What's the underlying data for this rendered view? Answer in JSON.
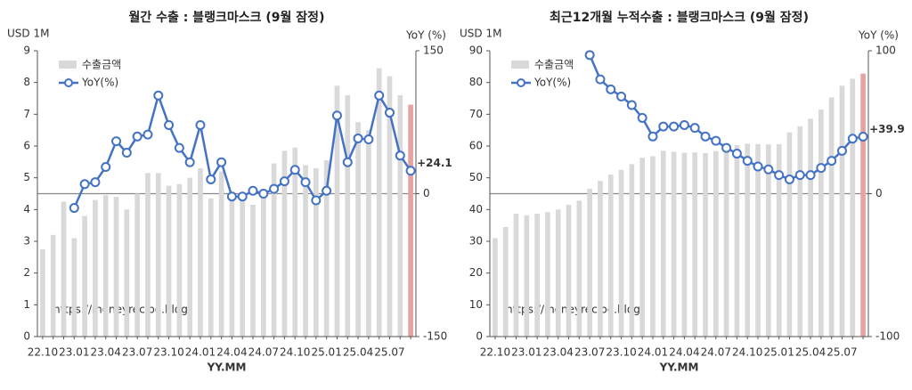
{
  "chart_data": [
    {
      "type": "bar-line",
      "title": "월간 수출 : 블랭크마스크 (9월 잠정)",
      "y_label": "USD 1M",
      "y2_label": "YoY (%)",
      "x_label": "YY.MM",
      "watermark": "https://moneyrecipe.blog",
      "categories": [
        "22.10",
        null,
        null,
        "23.01",
        null,
        null,
        "23.04",
        null,
        null,
        "23.07",
        null,
        null,
        "23.10",
        null,
        null,
        "24.01",
        null,
        null,
        "24.04",
        null,
        null,
        "24.07",
        null,
        null,
        "24.10",
        null,
        null,
        "25.01",
        null,
        null,
        "25.04",
        null,
        null,
        "25.07",
        null,
        null
      ],
      "ylim": [
        0,
        9
      ],
      "yticks": [
        0,
        1,
        2,
        3,
        4,
        5,
        6,
        7,
        8,
        9
      ],
      "y2lim": [
        -150,
        150
      ],
      "y2ticks": [
        -150,
        0,
        150
      ],
      "series": [
        {
          "name": "수출금액",
          "type": "bar",
          "color": "#d9d9d9",
          "highlight_color": "#e6a3a3",
          "values": [
            2.75,
            3.2,
            4.25,
            3.1,
            3.8,
            4.3,
            4.45,
            4.4,
            4.0,
            4.5,
            5.15,
            5.15,
            4.75,
            4.8,
            5.0,
            5.3,
            4.35,
            5.2,
            4.4,
            4.3,
            4.15,
            4.4,
            5.45,
            5.85,
            5.95,
            5.4,
            5.3,
            5.55,
            7.9,
            7.6,
            6.75,
            6.5,
            8.45,
            8.2,
            7.6,
            7.3
          ]
        },
        {
          "name": "YoY(%)",
          "type": "line",
          "axis": "y2",
          "color": "#4472c4",
          "values": [
            null,
            null,
            null,
            -15,
            10,
            12,
            28,
            55,
            43,
            60,
            62,
            103,
            72,
            48,
            33,
            72,
            15,
            33,
            -3,
            -3,
            3,
            0,
            5,
            13,
            25,
            12,
            -7,
            3,
            82,
            33,
            58,
            57,
            103,
            85,
            40,
            24.1
          ],
          "value_labels": [
            null,
            null,
            null,
            null,
            null,
            null,
            null,
            null,
            null,
            null,
            null,
            null,
            null,
            null,
            null,
            null,
            null,
            null,
            null,
            null,
            null,
            null,
            null,
            null,
            null,
            null,
            null,
            null,
            null,
            null,
            null,
            null,
            null,
            null,
            null,
            "+24.1"
          ]
        }
      ]
    },
    {
      "type": "bar-line",
      "title": "최근12개월 누적수출 : 블랭크마스크 (9월 잠정)",
      "y_label": "USD 1M",
      "y2_label": "YoY (%)",
      "x_label": "YY.MM",
      "watermark": "https://moneyrecipe.blog",
      "categories": [
        "22.10",
        null,
        null,
        "23.01",
        null,
        null,
        "23.04",
        null,
        null,
        "23.07",
        null,
        null,
        "23.10",
        null,
        null,
        "24.01",
        null,
        null,
        "24.04",
        null,
        null,
        "24.07",
        null,
        null,
        "24.10",
        null,
        null,
        "25.01",
        null,
        null,
        "25.04",
        null,
        null,
        "25.07",
        null,
        null
      ],
      "ylim": [
        0,
        90
      ],
      "yticks": [
        0,
        10,
        20,
        30,
        40,
        50,
        60,
        70,
        80,
        90
      ],
      "y2lim": [
        -100,
        100
      ],
      "y2ticks": [
        -100,
        0,
        100
      ],
      "series": [
        {
          "name": "수출금액",
          "type": "bar",
          "color": "#d9d9d9",
          "highlight_color": "#e6a3a3",
          "values": [
            31,
            34.5,
            38.7,
            38.2,
            38.7,
            39.2,
            40.0,
            41.5,
            42.8,
            46.5,
            49.0,
            51.0,
            52.5,
            54.3,
            56.3,
            56.8,
            58.5,
            58.2,
            57.9,
            58.0,
            57.8,
            58.4,
            59.1,
            60.3,
            60.7,
            60.6,
            60.5,
            60.6,
            64.3,
            66.2,
            68.6,
            71.5,
            75.3,
            79.0,
            81.2,
            82.8
          ]
        },
        {
          "name": "YoY(%)",
          "type": "line",
          "axis": "y2",
          "color": "#4472c4",
          "values": [
            null,
            null,
            null,
            null,
            null,
            null,
            null,
            null,
            null,
            97,
            80,
            73,
            68,
            62,
            53,
            40,
            47,
            47,
            48,
            46,
            40,
            37,
            32,
            28,
            23,
            19,
            17,
            13,
            10,
            13,
            13,
            18,
            23,
            30,
            38.5,
            39.9
          ],
          "value_labels": [
            null,
            null,
            null,
            null,
            null,
            null,
            null,
            null,
            null,
            null,
            null,
            null,
            null,
            null,
            null,
            null,
            null,
            null,
            null,
            null,
            null,
            null,
            null,
            null,
            null,
            null,
            null,
            null,
            null,
            null,
            null,
            null,
            null,
            null,
            null,
            "+39.9"
          ]
        }
      ]
    }
  ]
}
